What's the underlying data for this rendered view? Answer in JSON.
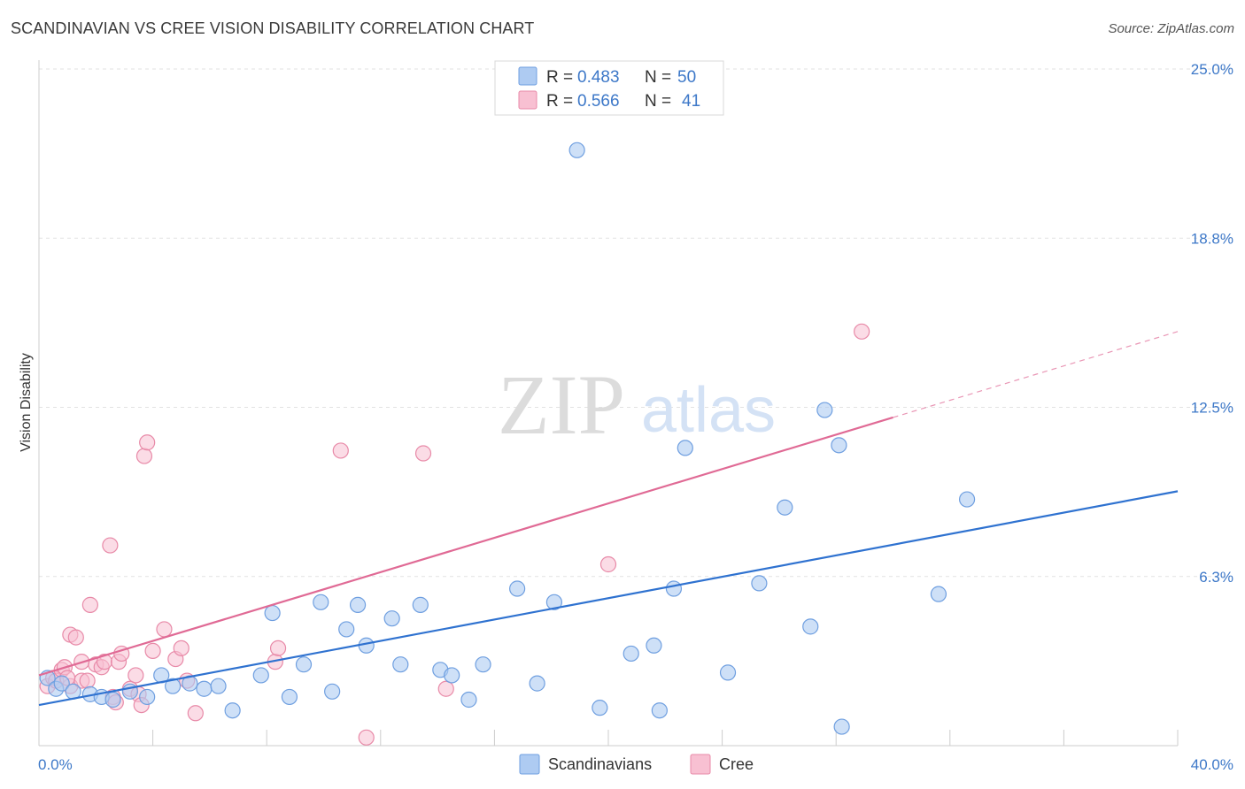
{
  "title": "SCANDINAVIAN VS CREE VISION DISABILITY CORRELATION CHART",
  "source": "Source: ZipAtlas.com",
  "watermark": {
    "zip": "ZIP",
    "atlas": "atlas"
  },
  "chart_data": {
    "type": "scatter",
    "ylabel": "Vision Disability",
    "xlim": [
      0,
      40
    ],
    "ylim": [
      0,
      25
    ],
    "x_tick_labels": {
      "min": "0.0%",
      "max": "40.0%"
    },
    "y_ticks": [
      {
        "value": 6.25,
        "label": "6.3%"
      },
      {
        "value": 12.5,
        "label": "12.5%"
      },
      {
        "value": 18.75,
        "label": "18.8%"
      },
      {
        "value": 25.0,
        "label": "25.0%"
      }
    ],
    "grid": true,
    "legend_position": "top-center",
    "colors": {
      "scandinavians_fill": "#aecbf2",
      "scandinavians_stroke": "#6f9fe0",
      "scandinavians_line": "#2f72d0",
      "cree_fill": "#f8c0d2",
      "cree_stroke": "#e88aa8",
      "cree_line": "#e06a95"
    },
    "series": [
      {
        "name": "Scandinavians",
        "R_label": "R =",
        "R": "0.483",
        "N_label": "N =",
        "N": "50",
        "trend": {
          "x0": 0,
          "y0": 1.5,
          "x1": 40,
          "y1": 9.4,
          "dash_from": null
        },
        "points": [
          [
            0.3,
            2.5
          ],
          [
            0.6,
            2.1
          ],
          [
            0.8,
            2.3
          ],
          [
            1.2,
            2.0
          ],
          [
            1.8,
            1.9
          ],
          [
            2.2,
            1.8
          ],
          [
            2.6,
            1.7
          ],
          [
            3.2,
            2.0
          ],
          [
            3.8,
            1.8
          ],
          [
            4.3,
            2.6
          ],
          [
            4.7,
            2.2
          ],
          [
            5.3,
            2.3
          ],
          [
            5.8,
            2.1
          ],
          [
            6.3,
            2.2
          ],
          [
            6.8,
            1.3
          ],
          [
            7.8,
            2.6
          ],
          [
            8.2,
            4.9
          ],
          [
            8.8,
            1.8
          ],
          [
            9.3,
            3.0
          ],
          [
            9.9,
            5.3
          ],
          [
            10.3,
            2.0
          ],
          [
            10.8,
            4.3
          ],
          [
            11.2,
            5.2
          ],
          [
            11.5,
            3.7
          ],
          [
            12.4,
            4.7
          ],
          [
            12.7,
            3.0
          ],
          [
            13.4,
            5.2
          ],
          [
            14.1,
            2.8
          ],
          [
            14.5,
            2.6
          ],
          [
            15.1,
            1.7
          ],
          [
            15.6,
            3.0
          ],
          [
            16.8,
            5.8
          ],
          [
            17.5,
            2.3
          ],
          [
            18.1,
            5.3
          ],
          [
            18.9,
            22.0
          ],
          [
            19.7,
            1.4
          ],
          [
            20.8,
            3.4
          ],
          [
            21.6,
            3.7
          ],
          [
            21.8,
            1.3
          ],
          [
            22.3,
            5.8
          ],
          [
            22.7,
            11.0
          ],
          [
            24.2,
            2.7
          ],
          [
            25.3,
            6.0
          ],
          [
            26.2,
            8.8
          ],
          [
            27.1,
            4.4
          ],
          [
            27.6,
            12.4
          ],
          [
            28.1,
            11.1
          ],
          [
            28.2,
            0.7
          ],
          [
            31.6,
            5.6
          ],
          [
            32.6,
            9.1
          ]
        ]
      },
      {
        "name": "Cree",
        "R_label": "R =",
        "R": "0.566",
        "N_label": "N =",
        "N": "41",
        "trend": {
          "x0": 0,
          "y0": 2.6,
          "x1": 40,
          "y1": 15.3,
          "dash_from": 30.0
        },
        "points": [
          [
            0.3,
            2.2
          ],
          [
            0.5,
            2.5
          ],
          [
            0.6,
            2.4
          ],
          [
            0.8,
            2.8
          ],
          [
            0.9,
            2.9
          ],
          [
            1.1,
            2.2
          ],
          [
            1.1,
            4.1
          ],
          [
            1.3,
            4.0
          ],
          [
            1.5,
            2.4
          ],
          [
            1.5,
            3.1
          ],
          [
            1.7,
            2.4
          ],
          [
            1.8,
            5.2
          ],
          [
            2.0,
            3.0
          ],
          [
            2.2,
            2.9
          ],
          [
            2.3,
            3.1
          ],
          [
            2.5,
            7.4
          ],
          [
            2.6,
            1.8
          ],
          [
            2.7,
            1.6
          ],
          [
            2.8,
            3.1
          ],
          [
            2.9,
            3.4
          ],
          [
            3.2,
            2.1
          ],
          [
            3.4,
            2.6
          ],
          [
            3.5,
            1.9
          ],
          [
            3.6,
            1.5
          ],
          [
            3.7,
            10.7
          ],
          [
            3.8,
            11.2
          ],
          [
            4.0,
            3.5
          ],
          [
            4.4,
            4.3
          ],
          [
            4.8,
            3.2
          ],
          [
            5.0,
            3.6
          ],
          [
            5.2,
            2.4
          ],
          [
            5.5,
            1.2
          ],
          [
            8.3,
            3.1
          ],
          [
            8.4,
            3.6
          ],
          [
            10.6,
            10.9
          ],
          [
            11.5,
            0.3
          ],
          [
            13.5,
            10.8
          ],
          [
            14.3,
            2.1
          ],
          [
            20.0,
            6.7
          ],
          [
            28.9,
            15.3
          ],
          [
            1.0,
            2.5
          ]
        ]
      }
    ]
  }
}
